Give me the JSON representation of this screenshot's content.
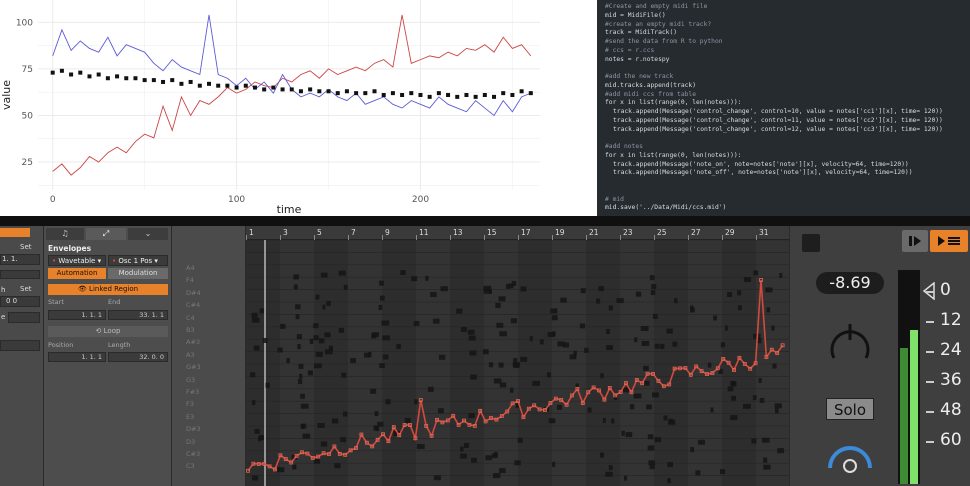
{
  "chart_data": {
    "type": "line",
    "xlabel": "time",
    "ylabel": "value",
    "xticks": [
      0,
      100,
      200
    ],
    "yticks": [
      25,
      50,
      75,
      100
    ],
    "xlim": [
      -8,
      265
    ],
    "ylim": [
      10,
      112
    ],
    "grid": true,
    "series": [
      {
        "color": "#cc4444",
        "kind": "line",
        "x": [
          0,
          5,
          10,
          15,
          20,
          25,
          30,
          35,
          40,
          45,
          50,
          55,
          60,
          65,
          70,
          75,
          80,
          85,
          90,
          95,
          100,
          105,
          110,
          115,
          120,
          125,
          130,
          135,
          140,
          145,
          150,
          155,
          160,
          165,
          170,
          175,
          180,
          185,
          190,
          195,
          200,
          205,
          210,
          215,
          220,
          225,
          230,
          235,
          240,
          245,
          250,
          255,
          260
        ],
        "y": [
          20,
          24,
          18,
          22,
          28,
          25,
          30,
          33,
          30,
          36,
          40,
          38,
          55,
          42,
          60,
          50,
          58,
          56,
          60,
          65,
          62,
          64,
          68,
          66,
          65,
          70,
          68,
          72,
          74,
          70,
          75,
          72,
          74,
          76,
          74,
          78,
          80,
          76,
          104,
          78,
          80,
          82,
          81,
          84,
          82,
          86,
          85,
          88,
          84,
          92,
          86,
          88,
          82
        ]
      },
      {
        "color": "#5b5bd6",
        "kind": "line",
        "x": [
          0,
          5,
          10,
          15,
          20,
          25,
          30,
          35,
          40,
          45,
          50,
          55,
          60,
          65,
          70,
          75,
          80,
          85,
          90,
          95,
          100,
          105,
          110,
          115,
          120,
          125,
          130,
          135,
          140,
          145,
          150,
          155,
          160,
          165,
          170,
          175,
          180,
          185,
          190,
          195,
          200,
          205,
          210,
          215,
          220,
          225,
          230,
          235,
          240,
          245,
          250,
          255,
          260
        ],
        "y": [
          82,
          96,
          85,
          90,
          86,
          84,
          92,
          82,
          88,
          86,
          84,
          78,
          74,
          80,
          76,
          74,
          72,
          104,
          72,
          70,
          66,
          70,
          64,
          68,
          62,
          72,
          64,
          60,
          62,
          60,
          64,
          60,
          58,
          62,
          56,
          58,
          60,
          56,
          54,
          58,
          56,
          54,
          60,
          56,
          54,
          52,
          58,
          54,
          50,
          58,
          52,
          60,
          62
        ]
      },
      {
        "color": "#111111",
        "kind": "scatter",
        "x": [
          0,
          5,
          10,
          15,
          20,
          25,
          30,
          35,
          40,
          45,
          50,
          55,
          60,
          65,
          70,
          75,
          80,
          85,
          90,
          95,
          100,
          105,
          110,
          115,
          120,
          125,
          130,
          135,
          140,
          145,
          150,
          155,
          160,
          165,
          170,
          175,
          180,
          185,
          190,
          195,
          200,
          205,
          210,
          215,
          220,
          225,
          230,
          235,
          240,
          245,
          250,
          255,
          260
        ],
        "y": [
          73,
          74,
          72,
          73,
          71,
          72,
          70,
          71,
          70,
          70,
          69,
          69,
          68,
          69,
          67,
          68,
          66,
          67,
          66,
          66,
          65,
          66,
          65,
          64,
          65,
          64,
          64,
          63,
          64,
          63,
          63,
          62,
          63,
          62,
          62,
          63,
          61,
          62,
          61,
          62,
          61,
          60,
          62,
          61,
          60,
          61,
          60,
          61,
          60,
          62,
          61,
          63,
          62
        ]
      }
    ]
  },
  "code": [
    {
      "text": "#Create and empty midi file",
      "style": "comment"
    },
    {
      "text": "mid = MidiFile()",
      "style": "code"
    },
    {
      "text": "#create an empty midi track?",
      "style": "comment"
    },
    {
      "text": "track = MidiTrack()",
      "style": "code"
    },
    {
      "text": "#send the data from R to python",
      "style": "comment"
    },
    {
      "text": "# ccs = r.ccs",
      "style": "comment"
    },
    {
      "text": "notes = r.notespy",
      "style": "code"
    },
    {
      "text": "",
      "style": "code"
    },
    {
      "text": "#add the new track",
      "style": "comment"
    },
    {
      "text": "mid.tracks.append(track)",
      "style": "code"
    },
    {
      "text": "#add midi ccs from table",
      "style": "comment"
    },
    {
      "text": "for x in list(range(0, len(notes))):",
      "style": "code"
    },
    {
      "text": "track.append(Message('control_change', control=10, value = notes['cc1'][x], time= 120))",
      "style": "indent"
    },
    {
      "text": "track.append(Message('control_change', control=11, value = notes['cc2'][x], time= 120))",
      "style": "indent"
    },
    {
      "text": "track.append(Message('control_change', control=12, value = notes['cc3'][x], time= 120))",
      "style": "indent"
    },
    {
      "text": "",
      "style": "code"
    },
    {
      "text": "#add notes",
      "style": "comment"
    },
    {
      "text": "for x in list(range(0, len(notes))):",
      "style": "code"
    },
    {
      "text": "track.append(Message('note_on', note=notes['note'][x], velocity=64, time=120))",
      "style": "indent"
    },
    {
      "text": "track.append(Message('note_off', note=notes['note'][x], velocity=64, time=120))",
      "style": "indent"
    },
    {
      "text": "",
      "style": "code"
    },
    {
      "text": "",
      "style": "code"
    },
    {
      "text": "# mid",
      "style": "comment"
    },
    {
      "text": "mid.save('../Data/Midi/ccs.mid')",
      "style": "code"
    }
  ],
  "left_props": {
    "set1": "Set",
    "set2": "Set",
    "val1": "1.  1.",
    "val2": "0   0",
    "h": "h",
    "e": "e"
  },
  "envelopes": {
    "title": "Envelopes",
    "device": "Wavetable",
    "param": "Osc 1 Pos",
    "automation": "Automation",
    "modulation": "Modulation",
    "linked_region": "Linked Region",
    "start_label": "Start",
    "end_label": "End",
    "start_value": "1.   1.   1",
    "end_value": "33.   1.   1",
    "loop": "Loop",
    "position_label": "Position",
    "length_label": "Length",
    "position_value": "1.   1.   1",
    "length_value": "32.   0.   0"
  },
  "piano": {
    "notes": [
      "A4",
      "F4",
      "D#4",
      "C#4",
      "C4",
      "B3",
      "A#3",
      "A3",
      "G#3",
      "G3",
      "F#3",
      "F3",
      "E3",
      "D#3",
      "D3",
      "C#3",
      "C3"
    ]
  },
  "ruler": {
    "bars": [
      "1",
      "3",
      "5",
      "7",
      "9",
      "11",
      "13",
      "15",
      "17",
      "19",
      "21",
      "23",
      "25",
      "27",
      "29",
      "31"
    ]
  },
  "mixer": {
    "volume": "-8.69",
    "solo": "Solo",
    "db_scale": [
      "0",
      "12",
      "24",
      "36",
      "48",
      "60"
    ]
  },
  "colors": {
    "accent_orange": "#e8822a",
    "automation_red": "#d24a3d",
    "meter_green": "#7fe06a"
  }
}
